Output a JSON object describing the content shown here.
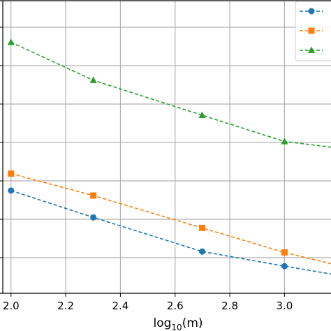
{
  "chart_data": {
    "type": "line",
    "xlabel": "log₁₀(m)",
    "xlabel_main": "log",
    "xlabel_sub": "10",
    "xlabel_rest": "(m)",
    "ylabel": "",
    "title": "",
    "grid": true,
    "legend_placement": "top-right",
    "xlim": [
      1.97,
      3.17
    ],
    "ylim": [
      0,
      1
    ],
    "x_ticks": [
      "2.0",
      "2.2",
      "2.4",
      "2.6",
      "2.8",
      "3.0"
    ],
    "series": [
      {
        "color": "#1f77b4",
        "marker": "circle",
        "x": [
          2.0,
          2.301,
          2.699,
          3.0,
          3.176
        ],
        "y": [
          0.352,
          0.26,
          0.143,
          0.093,
          0.065
        ]
      },
      {
        "color": "#ff7f0e",
        "marker": "square",
        "x": [
          2.0,
          2.301,
          2.699,
          3.0,
          3.176
        ],
        "y": [
          0.41,
          0.335,
          0.224,
          0.14,
          0.1
        ]
      },
      {
        "color": "#2ca02c",
        "marker": "triangle",
        "x": [
          2.0,
          2.301,
          2.699,
          3.0,
          3.176
        ],
        "y": [
          0.86,
          0.73,
          0.61,
          0.52,
          0.5
        ]
      }
    ]
  }
}
